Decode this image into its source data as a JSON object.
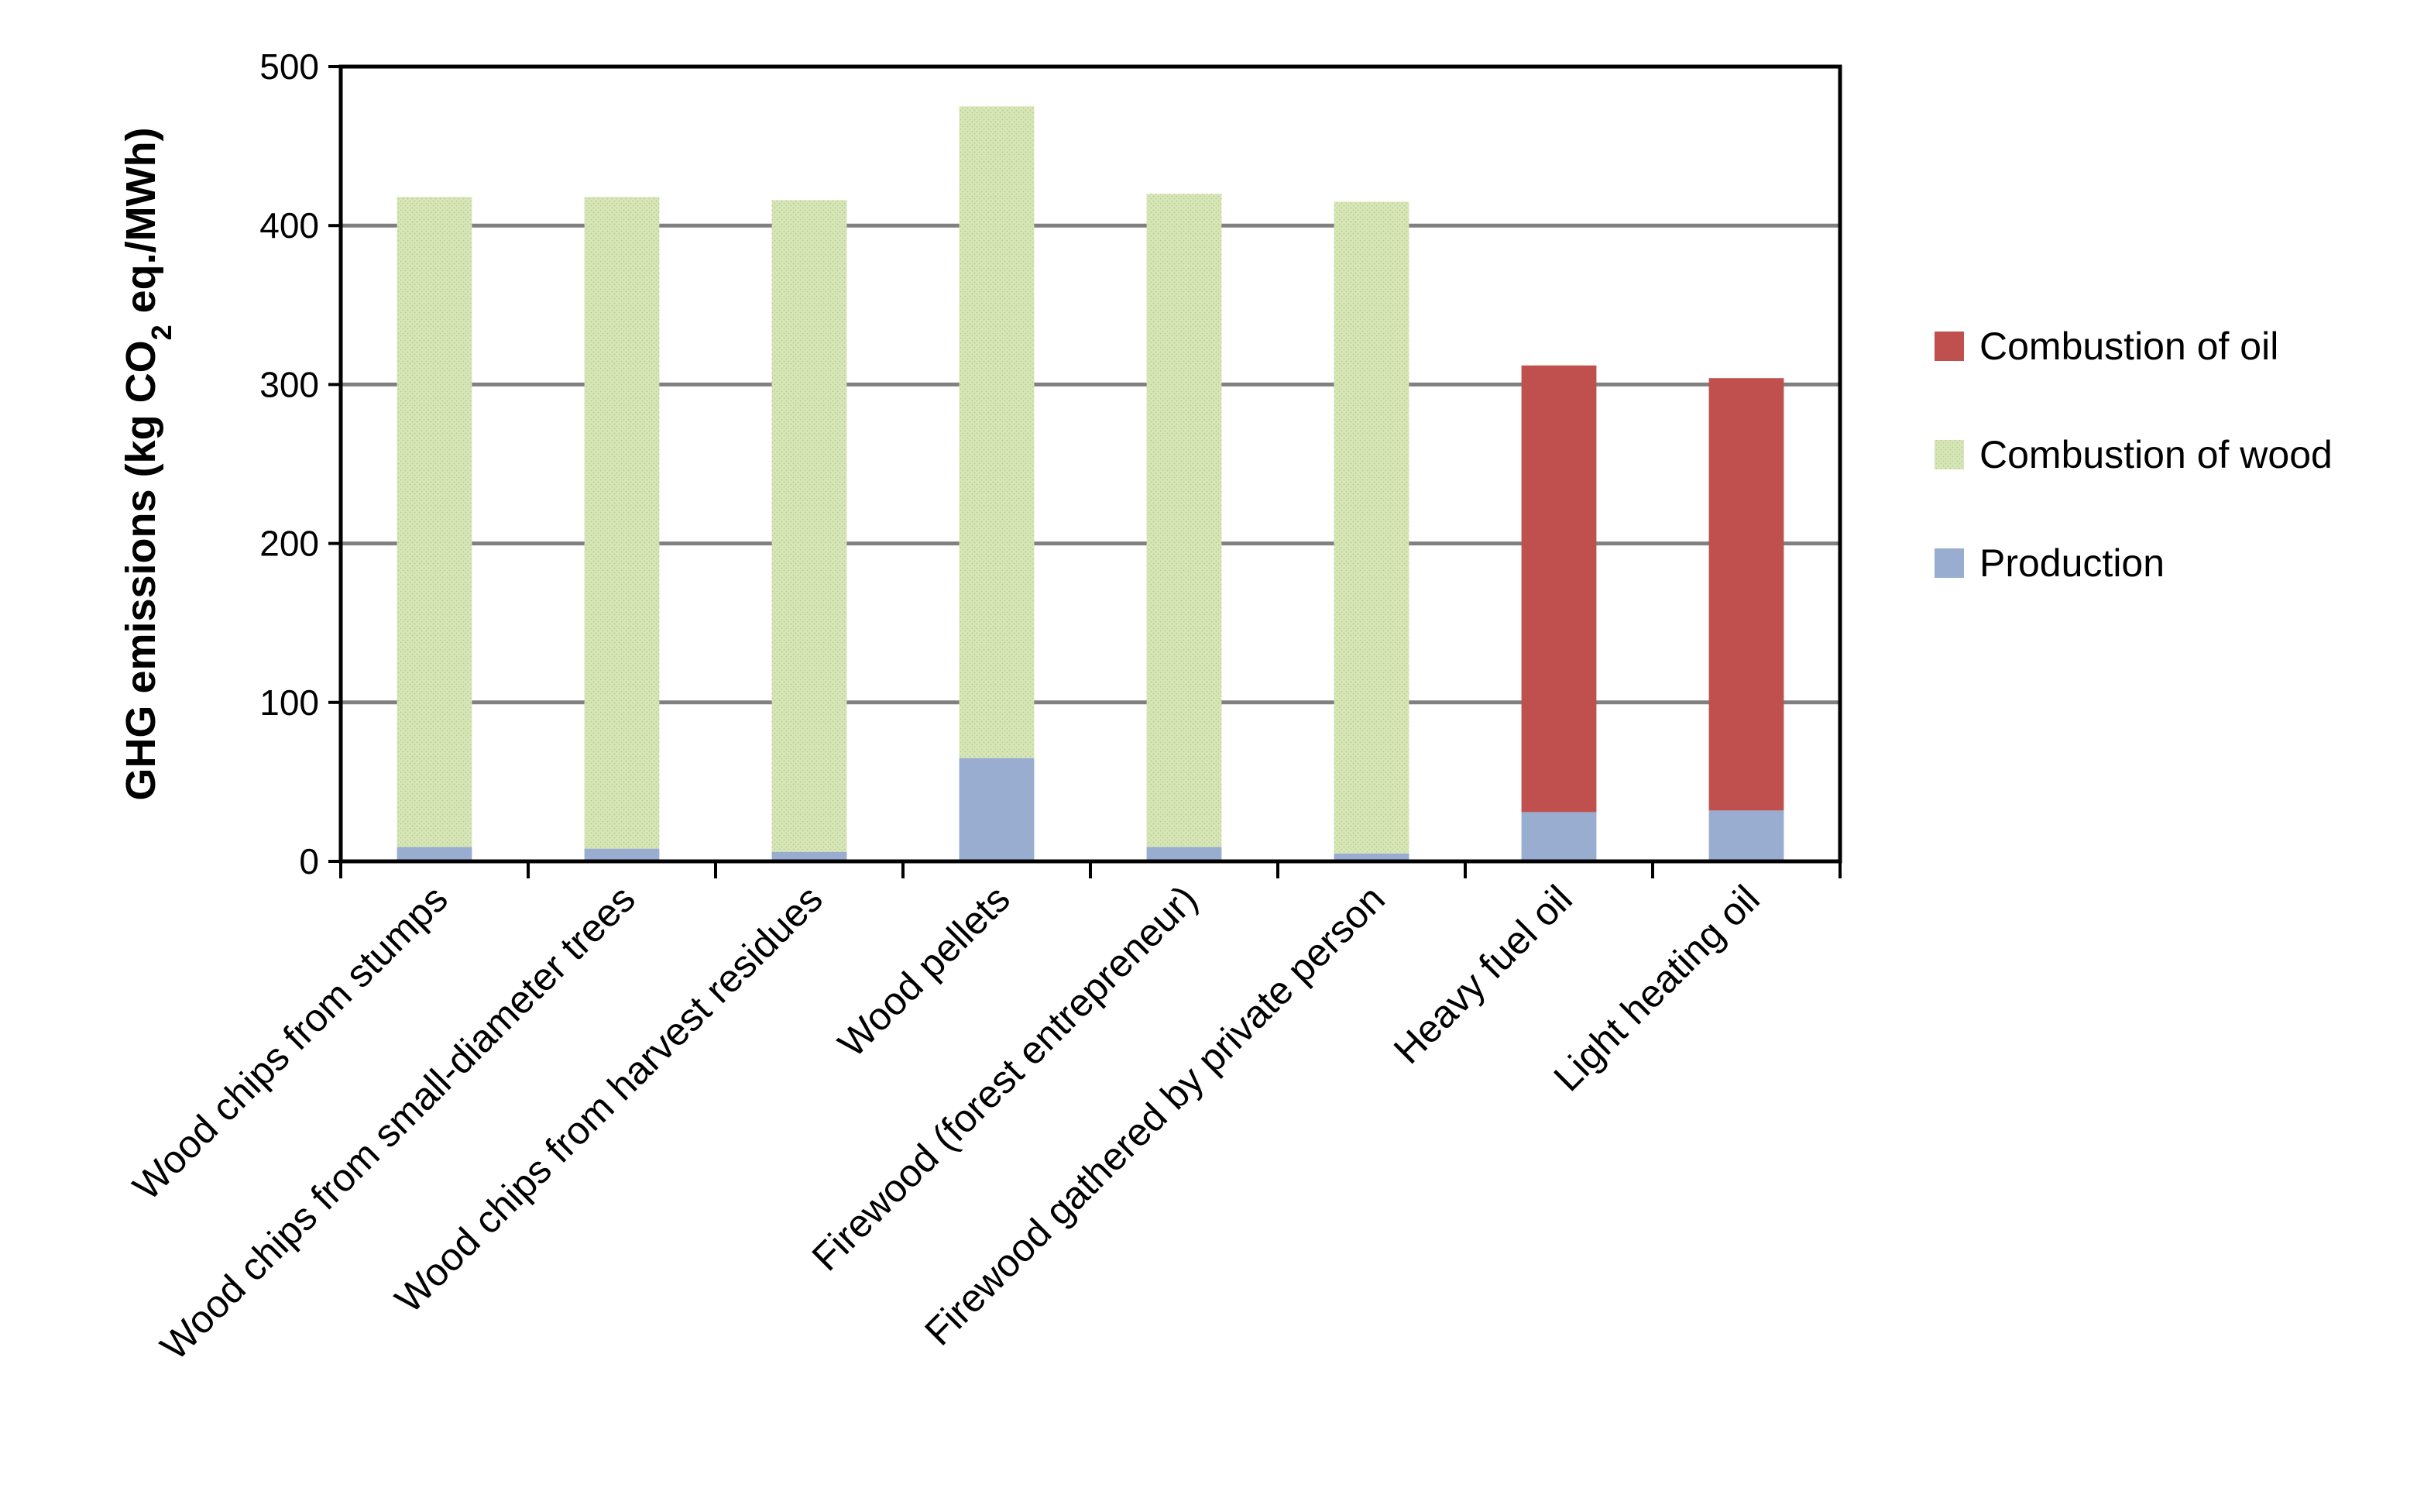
{
  "chart_data": {
    "type": "bar",
    "stacked": true,
    "categories": [
      "Wood chips from stumps",
      "Wood chips from small-diameter trees",
      "Wood chips from harvest residues",
      "Wood pellets",
      "Firewood (forest entrepreneur)",
      "Firewood gathered by private person",
      "Heavy fuel oil",
      "Light heating oil"
    ],
    "series": [
      {
        "name": "Production",
        "color": "#98adcf",
        "values": [
          9,
          8,
          6,
          65,
          9,
          5,
          31,
          32
        ]
      },
      {
        "name": "Combustion of wood",
        "color": "#d7e6b7",
        "values": [
          409,
          410,
          410,
          410,
          411,
          410,
          0,
          0
        ]
      },
      {
        "name": "Combustion of oil",
        "color": "#c0504d",
        "values": [
          0,
          0,
          0,
          0,
          0,
          0,
          281,
          272
        ]
      }
    ],
    "ylabel": {
      "main": "GHG emissions (kg CO",
      "sub": "2",
      "tail": " eq./MWh)"
    },
    "ylim": [
      0,
      500
    ],
    "yticks": [
      0,
      100,
      200,
      300,
      400,
      500
    ],
    "grid": true,
    "legend": {
      "position": "right",
      "entries": [
        "Combustion of oil",
        "Combustion of wood",
        "Production"
      ]
    }
  }
}
